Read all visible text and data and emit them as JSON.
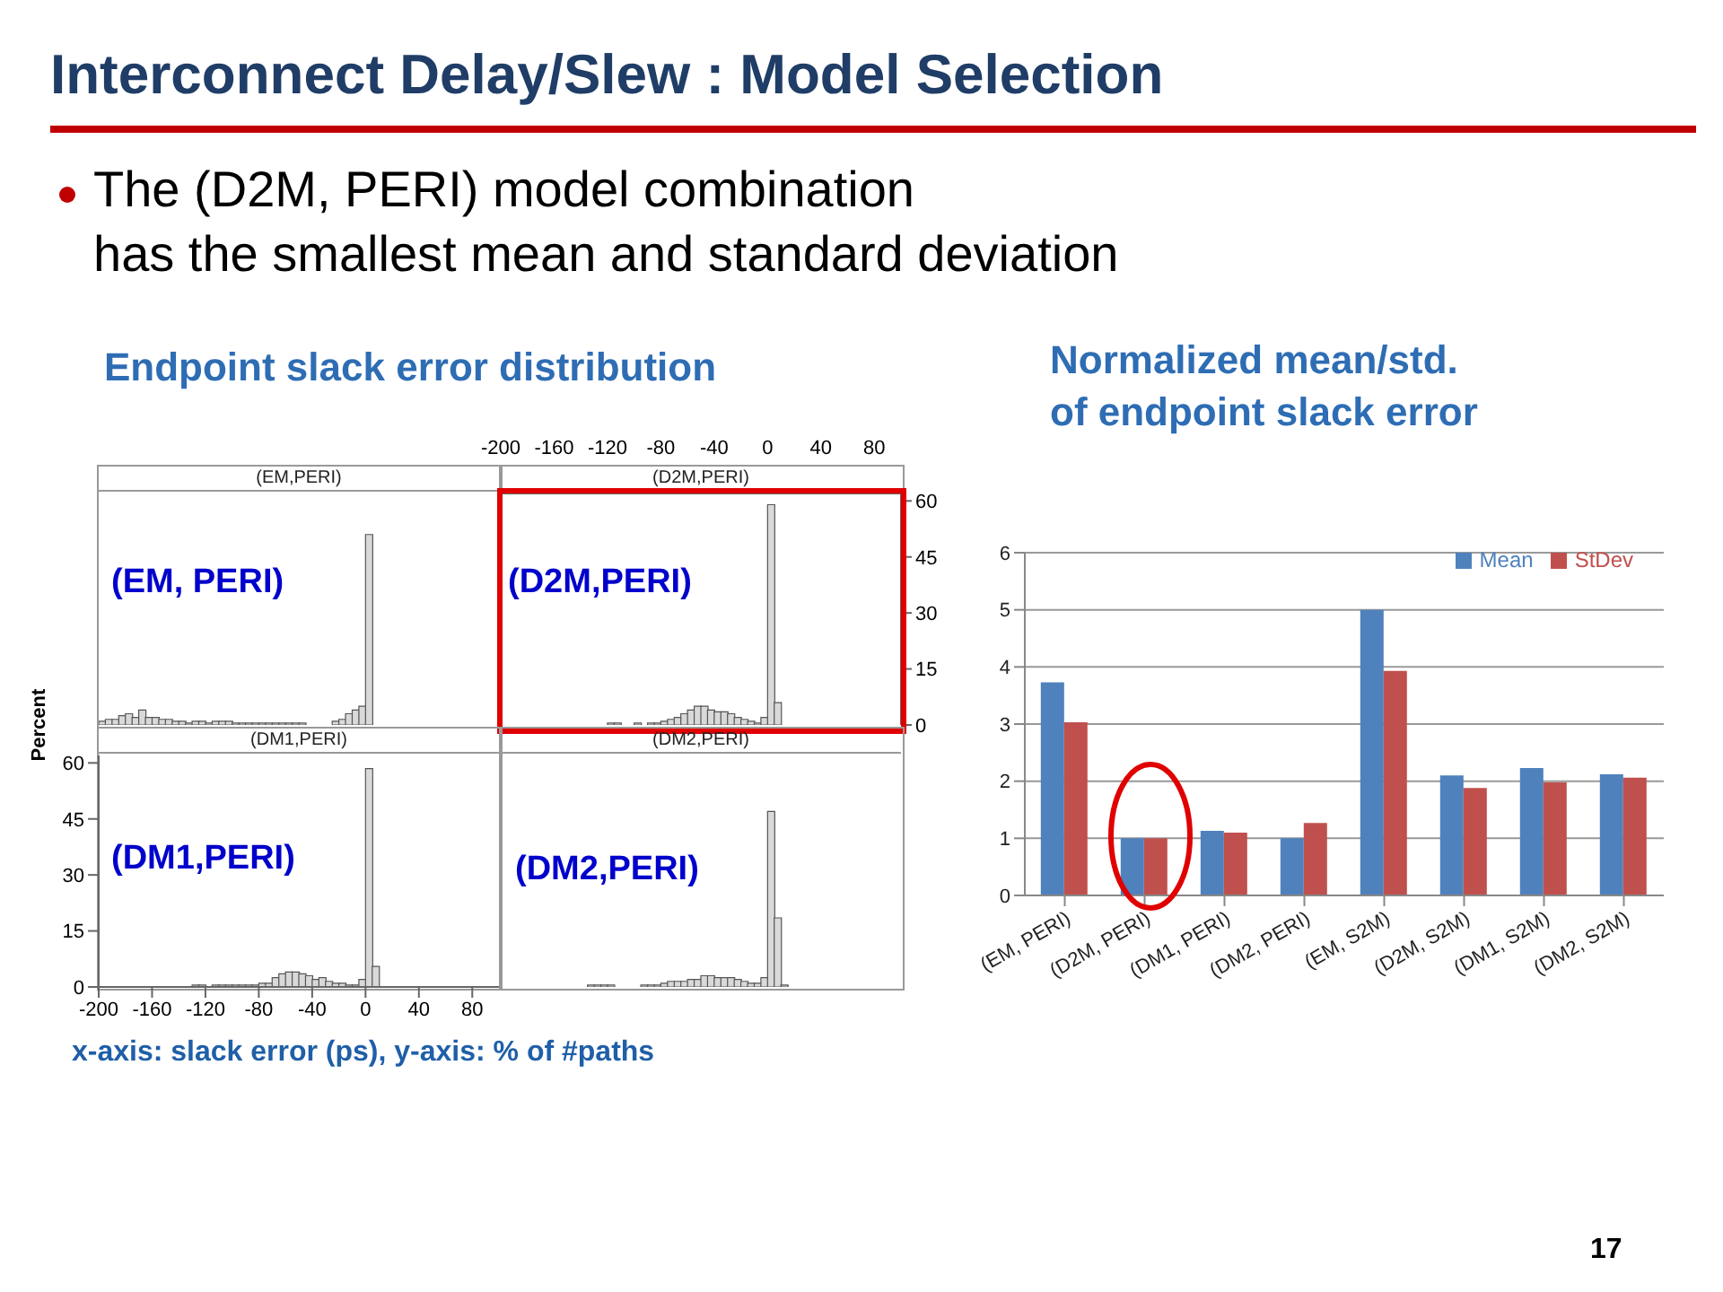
{
  "chart_data": [
    {
      "type": "other",
      "title": "Interconnect Delay/Slew : Model Selection",
      "subtitle": "The (D2M, PERI) model combination\nhas the smallest mean and standard deviation",
      "annotations": [
        "Endpoint slack error distribution",
        "x-axis: slack error (ps), y-axis: % of #paths",
        "17"
      ]
    },
    {
      "type": "histogram",
      "title": "(EM,PERI)",
      "annotations": [
        "(EM, PERI)"
      ],
      "bins": [
        -200,
        -195,
        -190,
        -185,
        -180,
        -175,
        -170,
        -165,
        -160,
        -155,
        -150,
        -145,
        -140,
        -135,
        -130,
        -125,
        -120,
        -115,
        -110,
        -105,
        -100,
        -95,
        -90,
        -85,
        -80,
        -75,
        -70,
        -65,
        -60,
        -55,
        -50,
        -45,
        -40,
        -35,
        -30,
        -25,
        -20,
        -15,
        -10,
        -5,
        0,
        5,
        10,
        15,
        20,
        25,
        30,
        35,
        40,
        45,
        50,
        55,
        60,
        65,
        70,
        75,
        80,
        85,
        90,
        95,
        100
      ],
      "values": [
        1,
        1.5,
        1.5,
        2.5,
        3,
        2,
        4,
        2,
        2,
        1.5,
        1.5,
        1,
        1,
        0.5,
        1,
        1,
        0.5,
        1,
        1,
        1,
        0.5,
        0.5,
        0.5,
        0.5,
        0.5,
        0.5,
        0.5,
        0.5,
        0.5,
        0.5,
        0.5,
        0,
        0,
        0,
        0,
        1,
        1.5,
        3,
        4,
        5,
        51,
        0,
        0,
        0,
        0,
        0,
        0,
        0,
        0,
        0,
        0,
        0,
        0,
        0,
        0,
        0,
        0,
        0,
        0,
        0
      ],
      "color": "#d9d9d9",
      "xlim": [
        -200,
        100
      ],
      "xticks": [
        -200,
        -160,
        -120,
        -80,
        -40,
        0,
        40,
        80
      ],
      "ylim": [
        0,
        62
      ],
      "yticks": [
        0,
        15,
        30,
        45,
        60
      ],
      "tick_labels": false
    },
    {
      "type": "histogram",
      "title": "(D2M,PERI)",
      "annotations": [
        "(D2M,PERI)"
      ],
      "bins": [
        -200,
        -195,
        -190,
        -185,
        -180,
        -175,
        -170,
        -165,
        -160,
        -155,
        -150,
        -145,
        -140,
        -135,
        -130,
        -125,
        -120,
        -115,
        -110,
        -105,
        -100,
        -95,
        -90,
        -85,
        -80,
        -75,
        -70,
        -65,
        -60,
        -55,
        -50,
        -45,
        -40,
        -35,
        -30,
        -25,
        -20,
        -15,
        -10,
        -5,
        0,
        5,
        10,
        15,
        20,
        25,
        30,
        35,
        40,
        45,
        50,
        55,
        60,
        65,
        70,
        75,
        80,
        85,
        90,
        95,
        100
      ],
      "values": [
        0,
        0,
        0,
        0,
        0,
        0,
        0,
        0,
        0,
        0,
        0,
        0,
        0,
        0,
        0,
        0,
        0.5,
        0.5,
        0,
        0,
        0.5,
        0,
        0.5,
        0.5,
        1,
        1.5,
        2,
        3,
        4,
        5,
        5,
        4,
        3.5,
        3.5,
        3,
        2,
        1.5,
        1,
        0.5,
        2,
        59,
        6,
        0,
        0,
        0,
        0,
        0,
        0,
        0,
        0,
        0,
        0,
        0,
        0,
        0,
        0,
        0,
        0,
        0,
        0
      ],
      "color": "#d9d9d9",
      "xlim": [
        -200,
        100
      ],
      "xticks": [
        -200,
        -160,
        -120,
        -80,
        -40,
        0,
        40,
        80
      ],
      "ylim": [
        0,
        62
      ],
      "yticks": [
        0,
        15,
        30,
        45,
        60
      ]
    },
    {
      "type": "histogram",
      "title": "(DM1,PERI)",
      "ylabel": "Percent",
      "annotations": [
        "(DM1,PERI)"
      ],
      "bins": [
        -200,
        -195,
        -190,
        -185,
        -180,
        -175,
        -170,
        -165,
        -160,
        -155,
        -150,
        -145,
        -140,
        -135,
        -130,
        -125,
        -120,
        -115,
        -110,
        -105,
        -100,
        -95,
        -90,
        -85,
        -80,
        -75,
        -70,
        -65,
        -60,
        -55,
        -50,
        -45,
        -40,
        -35,
        -30,
        -25,
        -20,
        -15,
        -10,
        -5,
        0,
        5,
        10,
        15,
        20,
        25,
        30,
        35,
        40,
        45,
        50,
        55,
        60,
        65,
        70,
        75,
        80,
        85,
        90,
        95,
        100
      ],
      "values": [
        0,
        0,
        0,
        0,
        0,
        0,
        0,
        0,
        0,
        0,
        0,
        0,
        0,
        0,
        0.5,
        0.5,
        0,
        0.5,
        0.5,
        0.5,
        0.5,
        0.5,
        0.5,
        0.5,
        1,
        1,
        2.5,
        3.5,
        4,
        4,
        3.5,
        3,
        2,
        2.5,
        1.5,
        1,
        1,
        0.5,
        0.5,
        2,
        58.5,
        5.5,
        0,
        0,
        0,
        0,
        0,
        0,
        0,
        0,
        0,
        0,
        0,
        0,
        0,
        0,
        0,
        0,
        0,
        0
      ],
      "color": "#d9d9d9",
      "xlim": [
        -200,
        100
      ],
      "xticks": [
        -200,
        -160,
        -120,
        -80,
        -40,
        0,
        40,
        80
      ],
      "ylim": [
        0,
        62
      ],
      "yticks": [
        0,
        15,
        30,
        45,
        60
      ]
    },
    {
      "type": "histogram",
      "title": "(DM2,PERI)",
      "annotations": [
        "(DM2,PERI)"
      ],
      "bins": [
        -200,
        -195,
        -190,
        -185,
        -180,
        -175,
        -170,
        -165,
        -160,
        -155,
        -150,
        -145,
        -140,
        -135,
        -130,
        -125,
        -120,
        -115,
        -110,
        -105,
        -100,
        -95,
        -90,
        -85,
        -80,
        -75,
        -70,
        -65,
        -60,
        -55,
        -50,
        -45,
        -40,
        -35,
        -30,
        -25,
        -20,
        -15,
        -10,
        -5,
        0,
        5,
        10,
        15,
        20,
        25,
        30,
        35,
        40,
        45,
        50,
        55,
        60,
        65,
        70,
        75,
        80,
        85,
        90,
        95,
        100
      ],
      "values": [
        0,
        0,
        0,
        0,
        0,
        0,
        0,
        0,
        0,
        0,
        0,
        0,
        0,
        0.5,
        0.5,
        0.5,
        0.5,
        0,
        0,
        0,
        0,
        0.5,
        0.5,
        0.5,
        1,
        1.5,
        1.5,
        1.5,
        2,
        2,
        3,
        3,
        2.5,
        2.5,
        2.5,
        2,
        1.5,
        1,
        1,
        2.5,
        47,
        18.5,
        0.5,
        0,
        0,
        0,
        0,
        0,
        0,
        0,
        0,
        0,
        0,
        0,
        0,
        0,
        0,
        0,
        0,
        0
      ],
      "color": "#d9d9d9",
      "xlim": [
        -200,
        100
      ],
      "xticks": [
        -200,
        -160,
        -120,
        -80,
        -40,
        0,
        40,
        80
      ],
      "ylim": [
        0,
        62
      ],
      "yticks": [
        0,
        15,
        30,
        45,
        60
      ],
      "tick_labels": false
    },
    {
      "type": "bar",
      "title": "Normalized mean/std.\nof endpoint slack error",
      "categories": [
        "(EM, PERI)",
        "(D2M, PERI)",
        "(DM1, PERI)",
        "(DM2, PERI)",
        "(EM, S2M)",
        "(D2M, S2M)",
        "(DM1, S2M)",
        "(DM2, S2M)"
      ],
      "series": [
        {
          "name": "Mean",
          "color": "#4f81bd",
          "values": [
            3.73,
            1,
            1.13,
            1,
            5,
            2.1,
            2.23,
            2.12
          ]
        },
        {
          "name": "StDev",
          "color": "#c0504d",
          "values": [
            3.03,
            1,
            1.1,
            1.27,
            3.93,
            1.88,
            1.98,
            2.06
          ]
        }
      ],
      "ylim": [
        0,
        6
      ],
      "yticks": [
        0,
        1,
        2,
        3,
        4,
        5,
        6
      ],
      "grid": "y",
      "legend": "top right"
    }
  ]
}
